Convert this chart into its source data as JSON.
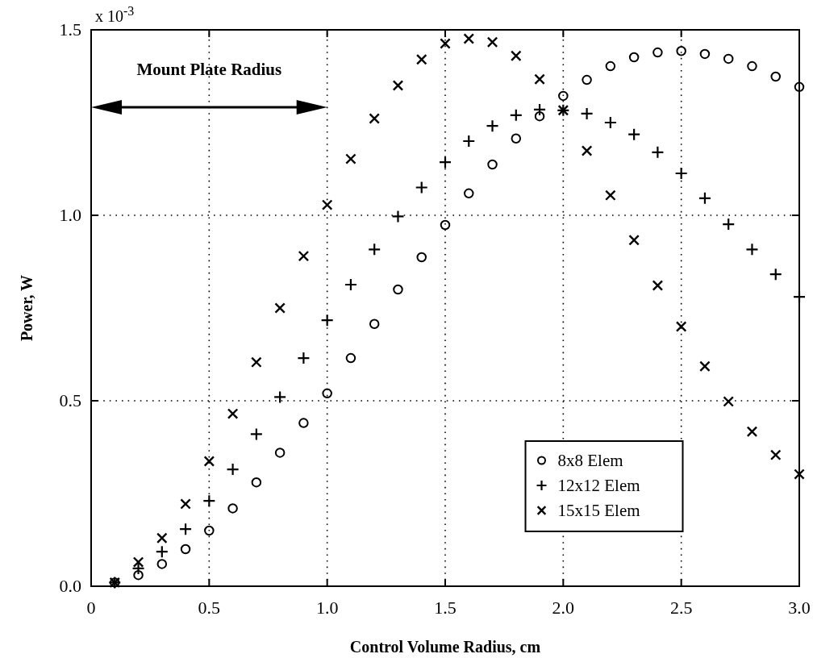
{
  "chart_data": {
    "type": "scatter",
    "xlabel": "Control Volume Radius, cm",
    "ylabel": "Power, W",
    "annotations": [
      "x 10$^{-3}$",
      "Mount Plate Radius"
    ],
    "x": [
      0.1,
      0.2,
      0.3,
      0.4,
      0.5,
      0.6,
      0.7,
      0.8,
      0.9,
      1.0,
      1.1,
      1.2,
      1.3,
      1.4,
      1.5,
      1.6,
      1.7,
      1.8,
      1.9,
      2.0,
      2.1,
      2.2,
      2.3,
      2.4,
      2.5,
      2.6,
      2.7,
      2.8,
      2.9,
      3.0
    ],
    "series": [
      {
        "name": "8x8 Elem",
        "color": "#000000",
        "marker": "circle",
        "values": [
          0.01,
          0.03,
          0.06,
          0.1,
          0.15,
          0.21,
          0.28,
          0.36,
          0.44,
          0.52,
          0.615,
          0.707,
          0.8,
          0.887,
          0.974,
          1.059,
          1.137,
          1.207,
          1.267,
          1.322,
          1.365,
          1.402,
          1.426,
          1.439,
          1.443,
          1.435,
          1.422,
          1.402,
          1.374,
          1.346
        ]
      },
      {
        "name": "12x12 Elem",
        "color": "#000000",
        "marker": "plus",
        "values": [
          0.01,
          0.048,
          0.093,
          0.154,
          0.23,
          0.315,
          0.41,
          0.51,
          0.615,
          0.717,
          0.813,
          0.908,
          0.997,
          1.075,
          1.143,
          1.2,
          1.241,
          1.27,
          1.285,
          1.283,
          1.274,
          1.25,
          1.218,
          1.17,
          1.113,
          1.046,
          0.976,
          0.908,
          0.841,
          0.78
        ]
      },
      {
        "name": "15x15 Elem",
        "color": "#000000",
        "marker": "cross",
        "values": [
          0.01,
          0.065,
          0.13,
          0.222,
          0.337,
          0.465,
          0.604,
          0.75,
          0.89,
          1.028,
          1.152,
          1.261,
          1.35,
          1.42,
          1.463,
          1.476,
          1.467,
          1.43,
          1.367,
          1.283,
          1.174,
          1.054,
          0.933,
          0.811,
          0.7,
          0.593,
          0.498,
          0.417,
          0.354,
          0.302
        ]
      }
    ],
    "xlim": [
      0,
      3
    ],
    "xticks": [
      0,
      0.5,
      {
        "value": 1,
        "label": "1.0"
      },
      1.5,
      {
        "value": 2,
        "label": "2.0"
      },
      2.5,
      {
        "value": 3,
        "label": "3.0"
      }
    ],
    "ylim": [
      0,
      1.5
    ],
    "yticks": [
      {
        "value": 0,
        "label": "0.0"
      },
      0.5,
      {
        "value": 1,
        "label": "1.0"
      },
      1.5
    ],
    "grid": true,
    "legend": "bottom right"
  }
}
